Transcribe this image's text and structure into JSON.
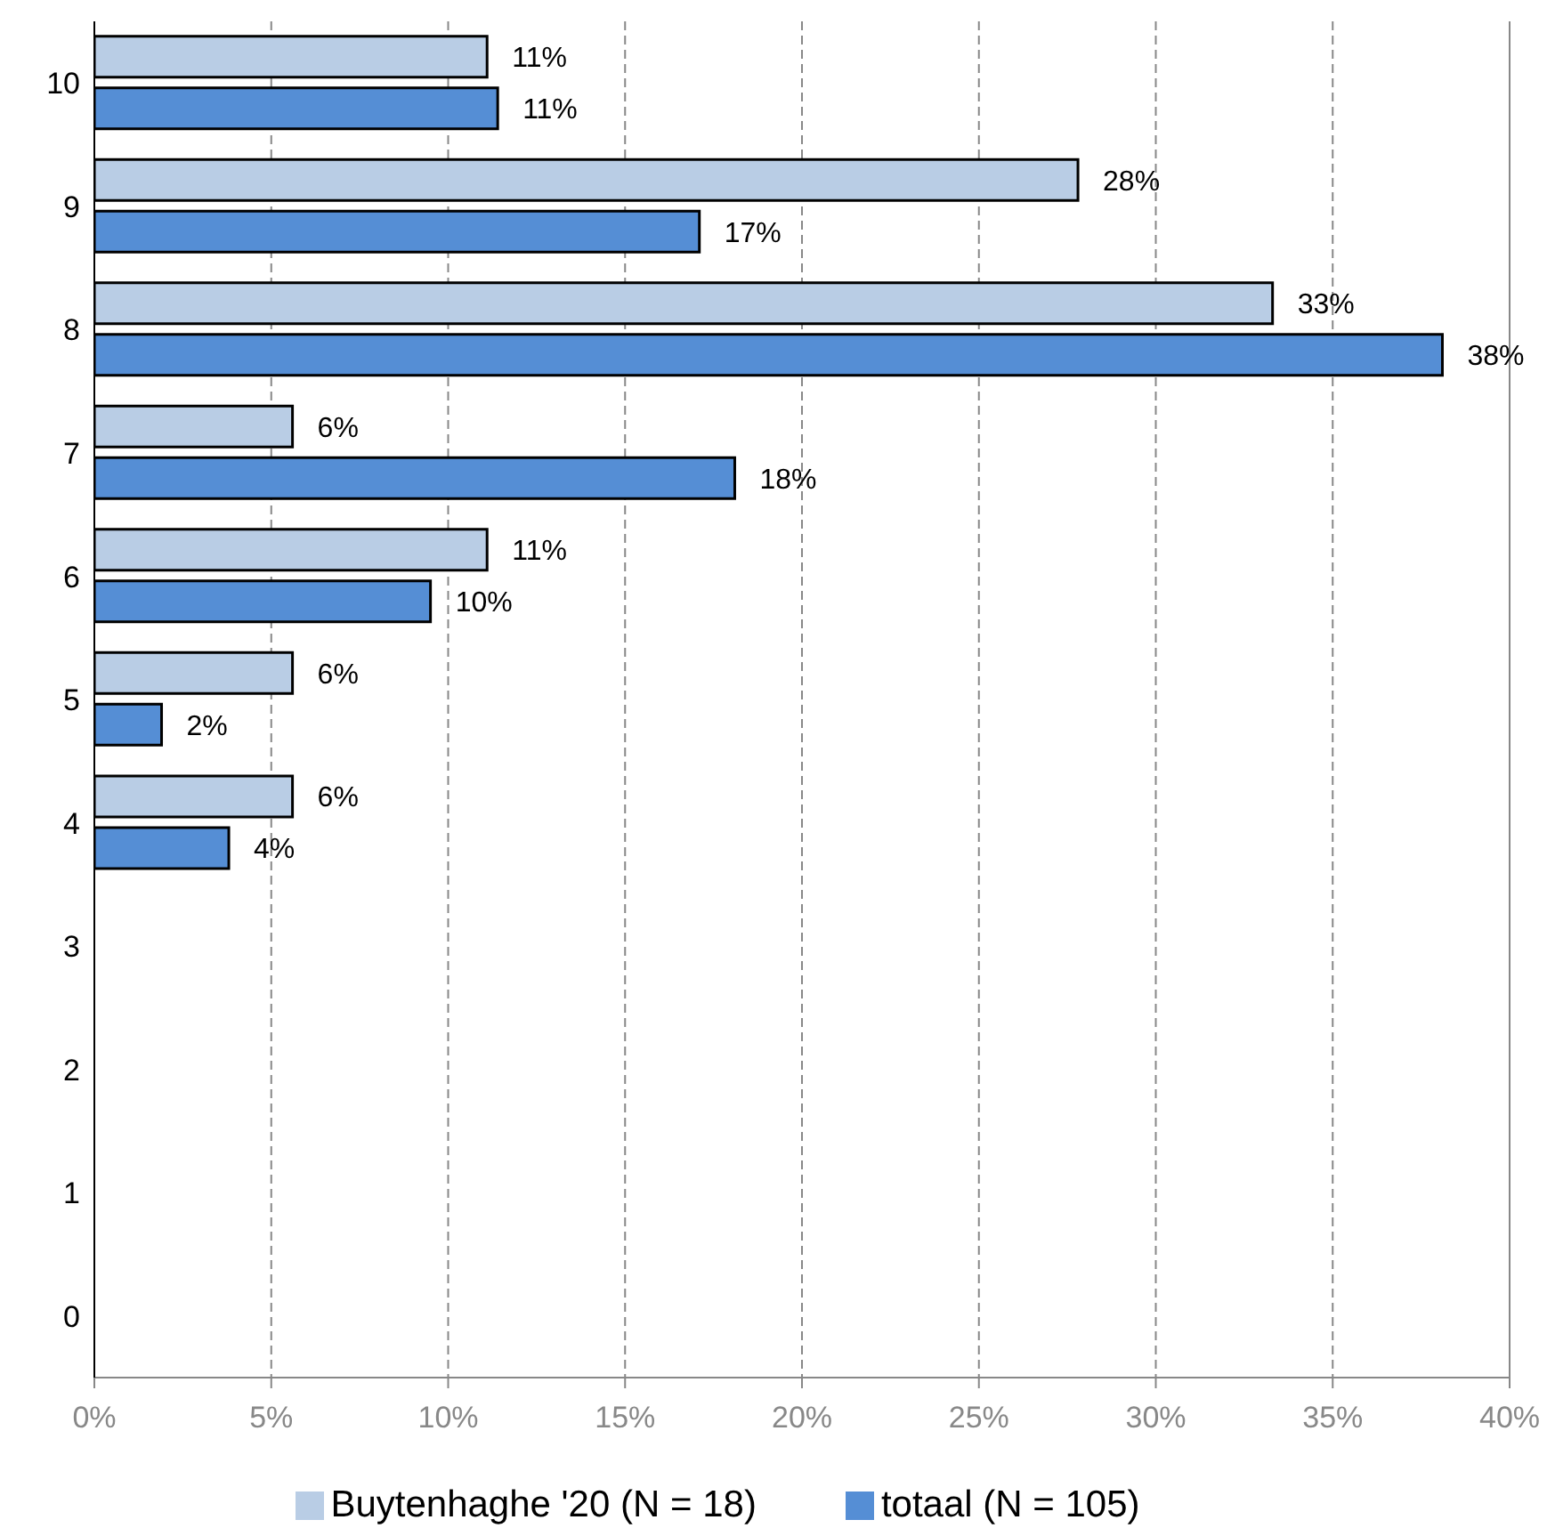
{
  "chart_data": {
    "type": "bar",
    "orientation": "horizontal",
    "categories": [
      "10",
      "9",
      "8",
      "7",
      "6",
      "5",
      "4",
      "3",
      "2",
      "1",
      "0"
    ],
    "series": [
      {
        "name": "Buytenhaghe '20 (N = 18)",
        "color": "#b9cde5",
        "values": [
          11.1,
          27.8,
          33.3,
          5.6,
          11.1,
          5.6,
          5.6,
          null,
          null,
          null,
          null
        ],
        "value_labels": [
          "11%",
          "28%",
          "33%",
          "6%",
          "11%",
          "6%",
          "6%",
          null,
          null,
          null,
          null
        ]
      },
      {
        "name": "totaal (N = 105)",
        "color": "#558ed5",
        "values": [
          11.4,
          17.1,
          38.1,
          18.1,
          9.5,
          1.9,
          3.8,
          null,
          null,
          null,
          null
        ],
        "value_labels": [
          "11%",
          "17%",
          "38%",
          "18%",
          "10%",
          "2%",
          "4%",
          null,
          null,
          null,
          null
        ]
      }
    ],
    "xlim": [
      0,
      40
    ],
    "xticks": [
      {
        "value": 0,
        "label": "0%"
      },
      {
        "value": 5,
        "label": "5%"
      },
      {
        "value": 10,
        "label": "10%"
      },
      {
        "value": 15,
        "label": "15%"
      },
      {
        "value": 20,
        "label": "20%"
      },
      {
        "value": 25,
        "label": "25%"
      },
      {
        "value": 30,
        "label": "30%"
      },
      {
        "value": 35,
        "label": "35%"
      },
      {
        "value": 40,
        "label": "40%"
      }
    ],
    "grid": "x",
    "legend": "bottom"
  }
}
